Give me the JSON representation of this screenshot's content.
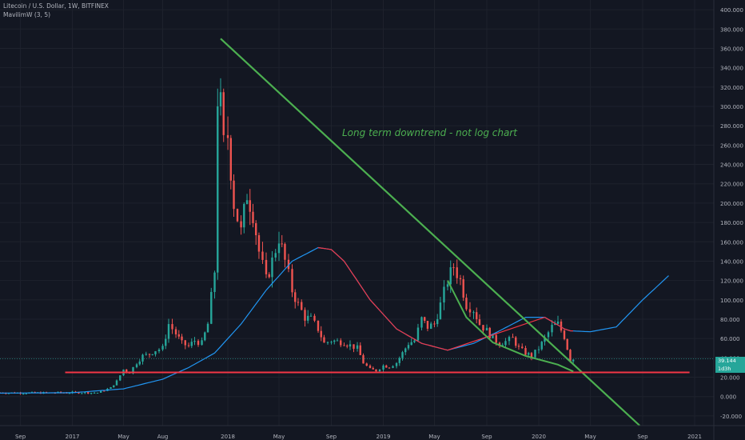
{
  "header": {
    "symbol_line": "Litecoin / U.S. Dollar, 1W, BITFINEX",
    "indicator_line": "MavilimW (3, 5)"
  },
  "annotation": "Long term downtrend - not log chart",
  "price_tags": {
    "current_price": "39.144",
    "countdown": "1d3h"
  },
  "colors": {
    "background": "#131722",
    "up": "#26a69a",
    "down": "#ef5350",
    "trendline": "#4caf50",
    "support": "#f23645",
    "ma_red": "#f23645",
    "ma_blue": "#2196f3",
    "grid": "#1e222d",
    "text": "#b2b5be"
  },
  "chart_data": {
    "type": "candlestick",
    "y_axis": {
      "side": "right",
      "ylim": [
        -30,
        410
      ],
      "ticks": [
        "400.000",
        "380.000",
        "360.000",
        "340.000",
        "320.000",
        "300.000",
        "280.000",
        "260.000",
        "240.000",
        "220.000",
        "200.000",
        "180.000",
        "160.000",
        "140.000",
        "120.000",
        "100.000",
        "80.000",
        "60.000",
        "40.000",
        "20.000",
        "0.000",
        "-20.000"
      ],
      "tick_values": [
        400,
        380,
        360,
        340,
        320,
        300,
        280,
        260,
        240,
        220,
        200,
        180,
        160,
        140,
        120,
        100,
        80,
        60,
        40,
        20,
        0,
        -20
      ]
    },
    "x_axis": {
      "range": [
        "2016-07-15",
        "2021-02-15"
      ],
      "ticks": [
        {
          "label": "Sep",
          "date": "2016-09-01"
        },
        {
          "label": "2017",
          "date": "2017-01-01"
        },
        {
          "label": "May",
          "date": "2017-05-01"
        },
        {
          "label": "Aug",
          "date": "2017-08-01"
        },
        {
          "label": "2018",
          "date": "2018-01-01"
        },
        {
          "label": "May",
          "date": "2018-05-01"
        },
        {
          "label": "Sep",
          "date": "2018-09-01"
        },
        {
          "label": "2019",
          "date": "2019-01-01"
        },
        {
          "label": "May",
          "date": "2019-05-01"
        },
        {
          "label": "Sep",
          "date": "2019-09-01"
        },
        {
          "label": "2020",
          "date": "2020-01-01"
        },
        {
          "label": "May",
          "date": "2020-05-01"
        },
        {
          "label": "Sep",
          "date": "2020-09-01"
        },
        {
          "label": "2021",
          "date": "2021-01-01"
        }
      ]
    },
    "series": [
      {
        "name": "LTCUSD",
        "kind": "candles",
        "points": [
          {
            "date": "2016-07-15",
            "value": 4
          },
          {
            "date": "2016-09-01",
            "value": 3.8
          },
          {
            "date": "2016-11-01",
            "value": 3.9
          },
          {
            "date": "2017-01-01",
            "value": 4.2
          },
          {
            "date": "2017-03-01",
            "value": 4
          },
          {
            "date": "2017-04-01",
            "value": 9
          },
          {
            "date": "2017-04-15",
            "value": 16
          },
          {
            "date": "2017-05-01",
            "value": 28
          },
          {
            "date": "2017-05-15",
            "value": 25
          },
          {
            "date": "2017-06-01",
            "value": 35
          },
          {
            "date": "2017-06-15",
            "value": 42
          },
          {
            "date": "2017-07-01",
            "value": 44
          },
          {
            "date": "2017-07-15",
            "value": 48
          },
          {
            "date": "2017-08-01",
            "value": 50
          },
          {
            "date": "2017-08-15",
            "value": 75
          },
          {
            "date": "2017-09-01",
            "value": 65
          },
          {
            "date": "2017-09-15",
            "value": 55
          },
          {
            "date": "2017-10-01",
            "value": 52
          },
          {
            "date": "2017-10-15",
            "value": 58
          },
          {
            "date": "2017-11-01",
            "value": 55
          },
          {
            "date": "2017-11-15",
            "value": 75
          },
          {
            "date": "2017-12-01",
            "value": 130
          },
          {
            "date": "2017-12-08",
            "value": 310
          },
          {
            "date": "2017-12-15",
            "value": 300
          },
          {
            "date": "2017-12-22",
            "value": 260
          },
          {
            "date": "2018-01-01",
            "value": 270
          },
          {
            "date": "2018-01-15",
            "value": 200
          },
          {
            "date": "2018-02-01",
            "value": 170
          },
          {
            "date": "2018-02-15",
            "value": 210
          },
          {
            "date": "2018-03-01",
            "value": 190
          },
          {
            "date": "2018-03-15",
            "value": 150
          },
          {
            "date": "2018-04-01",
            "value": 120
          },
          {
            "date": "2018-04-15",
            "value": 140
          },
          {
            "date": "2018-05-01",
            "value": 165
          },
          {
            "date": "2018-05-15",
            "value": 140
          },
          {
            "date": "2018-06-01",
            "value": 110
          },
          {
            "date": "2018-06-15",
            "value": 95
          },
          {
            "date": "2018-07-01",
            "value": 82
          },
          {
            "date": "2018-07-15",
            "value": 80
          },
          {
            "date": "2018-08-01",
            "value": 70
          },
          {
            "date": "2018-08-15",
            "value": 55
          },
          {
            "date": "2018-09-01",
            "value": 58
          },
          {
            "date": "2018-09-15",
            "value": 57
          },
          {
            "date": "2018-10-01",
            "value": 56
          },
          {
            "date": "2018-10-15",
            "value": 53
          },
          {
            "date": "2018-11-01",
            "value": 50
          },
          {
            "date": "2018-11-15",
            "value": 35
          },
          {
            "date": "2018-12-01",
            "value": 28
          },
          {
            "date": "2018-12-15",
            "value": 27
          },
          {
            "date": "2019-01-01",
            "value": 32
          },
          {
            "date": "2019-01-15",
            "value": 31
          },
          {
            "date": "2019-02-01",
            "value": 35
          },
          {
            "date": "2019-02-15",
            "value": 45
          },
          {
            "date": "2019-03-01",
            "value": 55
          },
          {
            "date": "2019-03-15",
            "value": 58
          },
          {
            "date": "2019-04-01",
            "value": 80
          },
          {
            "date": "2019-04-15",
            "value": 72
          },
          {
            "date": "2019-05-01",
            "value": 75
          },
          {
            "date": "2019-05-15",
            "value": 95
          },
          {
            "date": "2019-06-01",
            "value": 120
          },
          {
            "date": "2019-06-15",
            "value": 135
          },
          {
            "date": "2019-07-01",
            "value": 120
          },
          {
            "date": "2019-07-15",
            "value": 95
          },
          {
            "date": "2019-08-01",
            "value": 90
          },
          {
            "date": "2019-08-15",
            "value": 75
          },
          {
            "date": "2019-09-01",
            "value": 68
          },
          {
            "date": "2019-09-15",
            "value": 60
          },
          {
            "date": "2019-10-01",
            "value": 55
          },
          {
            "date": "2019-10-15",
            "value": 57
          },
          {
            "date": "2019-11-01",
            "value": 60
          },
          {
            "date": "2019-11-15",
            "value": 50
          },
          {
            "date": "2019-12-01",
            "value": 45
          },
          {
            "date": "2019-12-15",
            "value": 42
          },
          {
            "date": "2020-01-01",
            "value": 50
          },
          {
            "date": "2020-01-15",
            "value": 60
          },
          {
            "date": "2020-02-01",
            "value": 72
          },
          {
            "date": "2020-02-15",
            "value": 75
          },
          {
            "date": "2020-03-01",
            "value": 62
          },
          {
            "date": "2020-03-15",
            "value": 38
          },
          {
            "date": "2020-03-22",
            "value": 39
          }
        ]
      },
      {
        "name": "MavilimW (3, 5)",
        "kind": "line",
        "points": [
          {
            "date": "2016-07-15",
            "value": 3.6
          },
          {
            "date": "2017-01-01",
            "value": 4
          },
          {
            "date": "2017-05-01",
            "value": 8
          },
          {
            "date": "2017-08-01",
            "value": 18
          },
          {
            "date": "2017-10-01",
            "value": 30
          },
          {
            "date": "2017-12-01",
            "value": 45
          },
          {
            "date": "2018-02-01",
            "value": 75
          },
          {
            "date": "2018-04-01",
            "value": 110
          },
          {
            "date": "2018-06-01",
            "value": 140
          },
          {
            "date": "2018-08-01",
            "value": 154
          },
          {
            "date": "2018-09-01",
            "value": 152
          },
          {
            "date": "2018-10-01",
            "value": 140
          },
          {
            "date": "2018-12-01",
            "value": 100
          },
          {
            "date": "2019-02-01",
            "value": 70
          },
          {
            "date": "2019-04-01",
            "value": 55
          },
          {
            "date": "2019-06-01",
            "value": 48
          },
          {
            "date": "2019-08-01",
            "value": 55
          },
          {
            "date": "2019-10-01",
            "value": 68
          },
          {
            "date": "2019-12-01",
            "value": 82
          },
          {
            "date": "2020-01-15",
            "value": 82
          },
          {
            "date": "2020-03-01",
            "value": 70
          },
          {
            "date": "2020-03-15",
            "value": 68
          },
          {
            "date": "2020-05-01",
            "value": 67
          },
          {
            "date": "2020-07-01",
            "value": 72
          },
          {
            "date": "2020-09-01",
            "value": 100
          },
          {
            "date": "2020-11-01",
            "value": 125
          }
        ]
      },
      {
        "name": "Downtrend line",
        "kind": "trendline",
        "points": [
          {
            "date": "2017-12-15",
            "value": 370
          },
          {
            "date": "2020-08-25",
            "value": -30
          }
        ]
      },
      {
        "name": "Support",
        "kind": "horizontal",
        "points": [
          {
            "date": "2016-12-15",
            "value": 25
          },
          {
            "date": "2020-12-20",
            "value": 25
          }
        ]
      },
      {
        "name": "Curve",
        "kind": "curve",
        "points": [
          {
            "date": "2019-06-01",
            "value": 120
          },
          {
            "date": "2019-07-15",
            "value": 82
          },
          {
            "date": "2019-09-15",
            "value": 56
          },
          {
            "date": "2019-12-01",
            "value": 42
          },
          {
            "date": "2020-02-15",
            "value": 33
          },
          {
            "date": "2020-03-22",
            "value": 26
          }
        ]
      }
    ],
    "grid": true,
    "legend": "none"
  }
}
